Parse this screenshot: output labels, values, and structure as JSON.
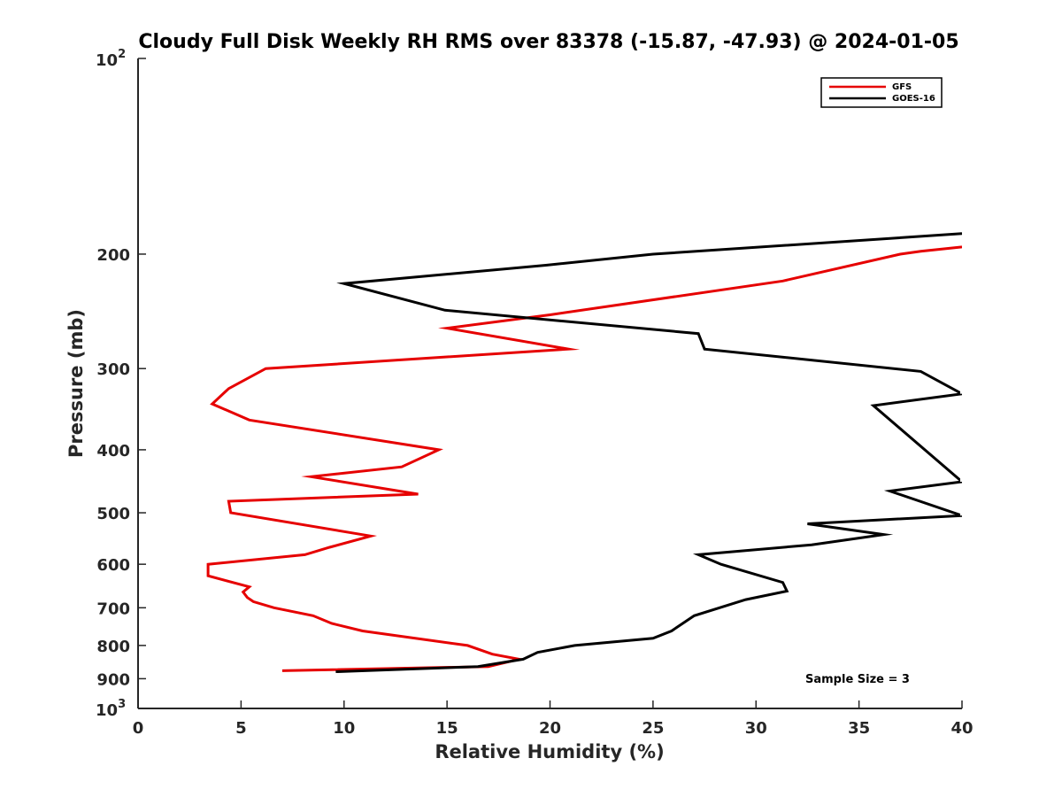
{
  "chart_data": {
    "type": "line",
    "title": "Cloudy Full Disk Weekly RH RMS over 83378 (-15.87, -47.93) @ 2024-01-05",
    "xlabel": "Relative Humidity (%)",
    "ylabel": "Pressure (mb)",
    "xlim": [
      0,
      40
    ],
    "ylim": [
      100,
      1000
    ],
    "y_scale": "log",
    "y_reversed": true,
    "grid": false,
    "legend_position": "top-right",
    "x_ticks": [
      "0",
      "5",
      "10",
      "15",
      "20",
      "25",
      "30",
      "35",
      "40"
    ],
    "y_ticks": [
      {
        "value": 100,
        "base": "10",
        "exp": "2"
      },
      {
        "value": 200,
        "label": "200"
      },
      {
        "value": 300,
        "label": "300"
      },
      {
        "value": 400,
        "label": "400"
      },
      {
        "value": 500,
        "label": "500"
      },
      {
        "value": 600,
        "label": "600"
      },
      {
        "value": 700,
        "label": "700"
      },
      {
        "value": 800,
        "label": "800"
      },
      {
        "value": 900,
        "label": "900"
      },
      {
        "value": 1000,
        "base": "10",
        "exp": "3"
      }
    ],
    "annotation": "Sample Size = 3",
    "series": [
      {
        "name": "GFS",
        "color": "#e60000",
        "points": [
          [
            7.0,
            875
          ],
          [
            17.0,
            862
          ],
          [
            18.5,
            840
          ],
          [
            17.2,
            825
          ],
          [
            16.0,
            800
          ],
          [
            10.9,
            760
          ],
          [
            9.4,
            740
          ],
          [
            8.5,
            720
          ],
          [
            6.6,
            700
          ],
          [
            5.6,
            685
          ],
          [
            5.3,
            675
          ],
          [
            5.1,
            662
          ],
          [
            5.4,
            650
          ],
          [
            3.4,
            625
          ],
          [
            3.4,
            600
          ],
          [
            8.1,
            580
          ],
          [
            9.3,
            565
          ],
          [
            11.3,
            543
          ],
          [
            4.5,
            500
          ],
          [
            4.4,
            480
          ],
          [
            13.6,
            468
          ],
          [
            8.4,
            440
          ],
          [
            12.8,
            425
          ],
          [
            14.6,
            400
          ],
          [
            5.4,
            360
          ],
          [
            3.6,
            340
          ],
          [
            4.4,
            322
          ],
          [
            6.2,
            300
          ],
          [
            20.9,
            280
          ],
          [
            15.0,
            260
          ],
          [
            20.0,
            248
          ],
          [
            31.3,
            220
          ],
          [
            37.0,
            200
          ],
          [
            38.0,
            198
          ],
          [
            40.0,
            195
          ]
        ]
      },
      {
        "name": "GOES-16",
        "color": "#000000",
        "points": [
          [
            9.6,
            878
          ],
          [
            16.5,
            862
          ],
          [
            18.7,
            840
          ],
          [
            19.4,
            820
          ],
          [
            21.2,
            800
          ],
          [
            25.0,
            780
          ],
          [
            25.9,
            760
          ],
          [
            27.0,
            720
          ],
          [
            29.5,
            680
          ],
          [
            31.5,
            660
          ],
          [
            31.3,
            640
          ],
          [
            28.3,
            600
          ],
          [
            27.2,
            580
          ],
          [
            32.7,
            560
          ],
          [
            36.2,
            540
          ],
          [
            32.5,
            520
          ],
          [
            40.0,
            505
          ],
          [
            36.5,
            463
          ],
          [
            40.0,
            448
          ],
          [
            35.7,
            342
          ],
          [
            40.0,
            328
          ],
          [
            38.0,
            303
          ],
          [
            27.5,
            280
          ],
          [
            27.2,
            265
          ],
          [
            14.9,
            244
          ],
          [
            10.0,
            222
          ],
          [
            19.8,
            208
          ],
          [
            25.0,
            200
          ],
          [
            40.0,
            186
          ]
        ],
        "breaks": [
          {
            "from": [
              40.0,
              505
            ],
            "to": [
              40.0,
              472
            ]
          },
          {
            "from": [
              40.0,
              448
            ],
            "to": [
              40.0,
              355
            ]
          },
          {
            "from": [
              40.0,
              328
            ],
            "to": [
              40.0,
              312
            ]
          }
        ]
      }
    ]
  }
}
